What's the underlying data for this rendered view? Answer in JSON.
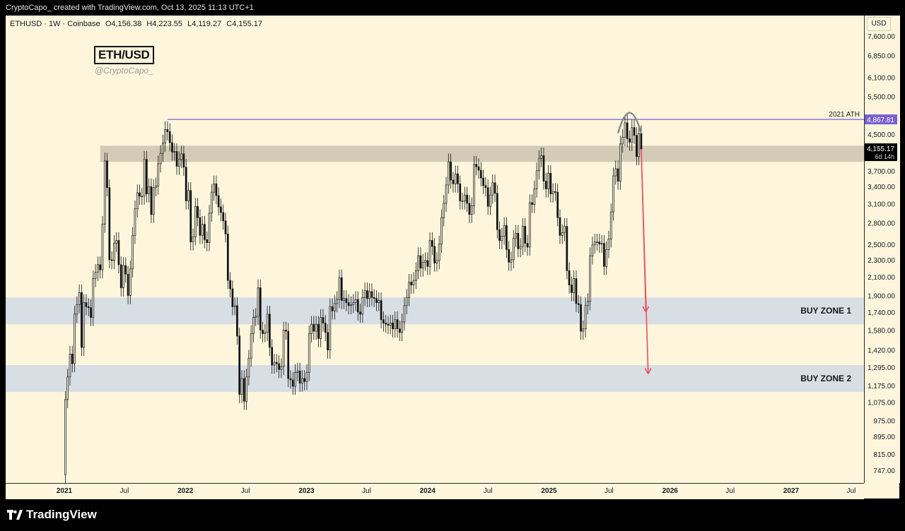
{
  "header": {
    "byline": "CryptoCapo_ created with TradingView.com, Oct 13, 2025 11:13 UTC+1"
  },
  "symbol": {
    "name": "ETHUSD · 1W · Coinbase",
    "open": "O4,156.38",
    "high": "H4,223.55",
    "low": "L4,119.27",
    "close": "C4,155.17"
  },
  "watermark": {
    "title": "ETH/USD",
    "handle": "@CryptoCapo_"
  },
  "footer": {
    "brand": "TradingView"
  },
  "colors": {
    "background": "#fdf6dc",
    "zone": "#d7dee4",
    "resistance_band": "#d3cbb8",
    "ath_line": "#7b5fce",
    "ath_label_bg": "#7b5fce",
    "arrow": "#ef4f5c",
    "candle": "#111111"
  },
  "chart_data": {
    "type": "candlestick",
    "currency": "USD",
    "price_scale": "log",
    "y_ticks": [
      7600,
      6850,
      6100,
      5500,
      4500,
      3700,
      3400,
      3100,
      2800,
      2500,
      2300,
      2100,
      1900,
      1740,
      1580,
      1420,
      1295,
      1175,
      1075,
      975,
      895,
      815,
      747
    ],
    "y_tick_labels": [
      "7,600.00",
      "6,850.00",
      "6,100.00",
      "5,500.00",
      "4,500.00",
      "3,700.00",
      "3,400.00",
      "3,100.00",
      "2,800.00",
      "2,500.00",
      "2,300.00",
      "2,100.00",
      "1,900.00",
      "1,740.00",
      "1,580.00",
      "1,420.00",
      "1,295.00",
      "1,175.00",
      "1,075.00",
      "975.00",
      "895.00",
      "815.00",
      "747.00"
    ],
    "x_ticks": [
      {
        "label": "2021",
        "date": "2021-01-01",
        "bold": true
      },
      {
        "label": "Jul",
        "date": "2021-07-01",
        "bold": false
      },
      {
        "label": "2022",
        "date": "2022-01-01",
        "bold": true
      },
      {
        "label": "Jul",
        "date": "2022-07-01",
        "bold": false
      },
      {
        "label": "2023",
        "date": "2023-01-01",
        "bold": true
      },
      {
        "label": "Jul",
        "date": "2023-07-01",
        "bold": false
      },
      {
        "label": "2024",
        "date": "2024-01-01",
        "bold": true
      },
      {
        "label": "Jul",
        "date": "2024-07-01",
        "bold": false
      },
      {
        "label": "2025",
        "date": "2025-01-01",
        "bold": true
      },
      {
        "label": "Jul",
        "date": "2025-07-01",
        "bold": false
      },
      {
        "label": "2026",
        "date": "2026-01-01",
        "bold": true
      },
      {
        "label": "Jul",
        "date": "2026-07-01",
        "bold": false
      },
      {
        "label": "2027",
        "date": "2027-01-01",
        "bold": true
      },
      {
        "label": "Jul",
        "date": "2027-07-01",
        "bold": false
      }
    ],
    "weekly_closes": [
      [
        "2020-12-28",
        730
      ],
      [
        "2021-01-04",
        1090
      ],
      [
        "2021-01-11",
        1230
      ],
      [
        "2021-01-18",
        1390
      ],
      [
        "2021-01-25",
        1320
      ],
      [
        "2021-02-01",
        1720
      ],
      [
        "2021-02-08",
        1810
      ],
      [
        "2021-02-15",
        1930
      ],
      [
        "2021-02-22",
        1440
      ],
      [
        "2021-03-01",
        1830
      ],
      [
        "2021-03-08",
        1790
      ],
      [
        "2021-03-15",
        1780
      ],
      [
        "2021-03-22",
        1690
      ],
      [
        "2021-03-29",
        2080
      ],
      [
        "2021-04-05",
        2150
      ],
      [
        "2021-04-12",
        2240
      ],
      [
        "2021-04-19",
        2180
      ],
      [
        "2021-04-26",
        2780
      ],
      [
        "2021-05-03",
        3900
      ],
      [
        "2021-05-10",
        3380
      ],
      [
        "2021-05-17",
        2300
      ],
      [
        "2021-05-24",
        2290
      ],
      [
        "2021-05-31",
        2510
      ],
      [
        "2021-06-07",
        2550
      ],
      [
        "2021-06-14",
        2240
      ],
      [
        "2021-06-21",
        1980
      ],
      [
        "2021-06-28",
        2230
      ],
      [
        "2021-07-05",
        2130
      ],
      [
        "2021-07-12",
        1900
      ],
      [
        "2021-07-19",
        2190
      ],
      [
        "2021-07-26",
        2620
      ],
      [
        "2021-08-02",
        3020
      ],
      [
        "2021-08-09",
        3290
      ],
      [
        "2021-08-16",
        3230
      ],
      [
        "2021-08-23",
        3230
      ],
      [
        "2021-08-30",
        3930
      ],
      [
        "2021-09-06",
        3270
      ],
      [
        "2021-09-13",
        3400
      ],
      [
        "2021-09-20",
        2930
      ],
      [
        "2021-09-27",
        3380
      ],
      [
        "2021-10-04",
        3410
      ],
      [
        "2021-10-11",
        3840
      ],
      [
        "2021-10-18",
        4060
      ],
      [
        "2021-10-25",
        4290
      ],
      [
        "2021-11-01",
        4610
      ],
      [
        "2021-11-08",
        4560
      ],
      [
        "2021-11-15",
        4300
      ],
      [
        "2021-11-22",
        4090
      ],
      [
        "2021-11-29",
        4100
      ],
      [
        "2021-12-06",
        3790
      ],
      [
        "2021-12-13",
        3930
      ],
      [
        "2021-12-20",
        4050
      ],
      [
        "2021-12-27",
        3770
      ],
      [
        "2022-01-03",
        3150
      ],
      [
        "2022-01-10",
        3330
      ],
      [
        "2022-01-17",
        2530
      ],
      [
        "2022-01-24",
        2600
      ],
      [
        "2022-01-31",
        3060
      ],
      [
        "2022-02-07",
        2880
      ],
      [
        "2022-02-14",
        2620
      ],
      [
        "2022-02-21",
        2780
      ],
      [
        "2022-02-28",
        2560
      ],
      [
        "2022-03-07",
        2520
      ],
      [
        "2022-03-14",
        2950
      ],
      [
        "2022-03-21",
        3300
      ],
      [
        "2022-03-28",
        3450
      ],
      [
        "2022-04-04",
        3240
      ],
      [
        "2022-04-11",
        3050
      ],
      [
        "2022-04-18",
        2960
      ],
      [
        "2022-04-25",
        2830
      ],
      [
        "2022-05-02",
        2640
      ],
      [
        "2022-05-09",
        2060
      ],
      [
        "2022-05-16",
        1970
      ],
      [
        "2022-05-23",
        1790
      ],
      [
        "2022-05-30",
        1800
      ],
      [
        "2022-06-06",
        1530
      ],
      [
        "2022-06-13",
        1120
      ],
      [
        "2022-06-20",
        1220
      ],
      [
        "2022-06-27",
        1080
      ],
      [
        "2022-07-04",
        1230
      ],
      [
        "2022-07-11",
        1360
      ],
      [
        "2022-07-18",
        1550
      ],
      [
        "2022-07-25",
        1690
      ],
      [
        "2022-08-01",
        1700
      ],
      [
        "2022-08-08",
        1980
      ],
      [
        "2022-08-15",
        1580
      ],
      [
        "2022-08-22",
        1550
      ],
      [
        "2022-08-29",
        1560
      ],
      [
        "2022-09-05",
        1720
      ],
      [
        "2022-09-12",
        1440
      ],
      [
        "2022-09-19",
        1310
      ],
      [
        "2022-09-26",
        1330
      ],
      [
        "2022-10-03",
        1320
      ],
      [
        "2022-10-10",
        1280
      ],
      [
        "2022-10-17",
        1300
      ],
      [
        "2022-10-24",
        1580
      ],
      [
        "2022-10-31",
        1570
      ],
      [
        "2022-11-07",
        1220
      ],
      [
        "2022-11-14",
        1210
      ],
      [
        "2022-11-21",
        1170
      ],
      [
        "2022-11-28",
        1260
      ],
      [
        "2022-12-05",
        1270
      ],
      [
        "2022-12-12",
        1190
      ],
      [
        "2022-12-19",
        1220
      ],
      [
        "2022-12-26",
        1200
      ],
      [
        "2023-01-02",
        1260
      ],
      [
        "2023-01-09",
        1550
      ],
      [
        "2023-01-16",
        1630
      ],
      [
        "2023-01-23",
        1570
      ],
      [
        "2023-01-30",
        1630
      ],
      [
        "2023-02-06",
        1510
      ],
      [
        "2023-02-13",
        1690
      ],
      [
        "2023-02-20",
        1640
      ],
      [
        "2023-02-27",
        1560
      ],
      [
        "2023-03-06",
        1420
      ],
      [
        "2023-03-13",
        1790
      ],
      [
        "2023-03-20",
        1750
      ],
      [
        "2023-03-27",
        1820
      ],
      [
        "2023-04-03",
        1860
      ],
      [
        "2023-04-10",
        2090
      ],
      [
        "2023-04-17",
        1850
      ],
      [
        "2023-04-24",
        1870
      ],
      [
        "2023-05-01",
        1830
      ],
      [
        "2023-05-08",
        1800
      ],
      [
        "2023-05-15",
        1810
      ],
      [
        "2023-05-22",
        1830
      ],
      [
        "2023-05-29",
        1860
      ],
      [
        "2023-06-05",
        1740
      ],
      [
        "2023-06-12",
        1720
      ],
      [
        "2023-06-19",
        1880
      ],
      [
        "2023-06-26",
        1950
      ],
      [
        "2023-07-03",
        1870
      ],
      [
        "2023-07-10",
        1940
      ],
      [
        "2023-07-17",
        1880
      ],
      [
        "2023-07-24",
        1870
      ],
      [
        "2023-07-31",
        1830
      ],
      [
        "2023-08-07",
        1850
      ],
      [
        "2023-08-14",
        1670
      ],
      [
        "2023-08-21",
        1640
      ],
      [
        "2023-08-28",
        1630
      ],
      [
        "2023-09-04",
        1620
      ],
      [
        "2023-09-11",
        1640
      ],
      [
        "2023-09-18",
        1590
      ],
      [
        "2023-09-25",
        1670
      ],
      [
        "2023-10-02",
        1590
      ],
      [
        "2023-10-09",
        1560
      ],
      [
        "2023-10-16",
        1650
      ],
      [
        "2023-10-23",
        1800
      ],
      [
        "2023-10-30",
        1880
      ],
      [
        "2023-11-06",
        2040
      ],
      [
        "2023-11-13",
        2010
      ],
      [
        "2023-11-20",
        2060
      ],
      [
        "2023-11-27",
        2170
      ],
      [
        "2023-12-04",
        2350
      ],
      [
        "2023-12-11",
        2200
      ],
      [
        "2023-12-18",
        2270
      ],
      [
        "2023-12-25",
        2290
      ],
      [
        "2024-01-01",
        2220
      ],
      [
        "2024-01-08",
        2550
      ],
      [
        "2024-01-15",
        2470
      ],
      [
        "2024-01-22",
        2260
      ],
      [
        "2024-01-29",
        2290
      ],
      [
        "2024-02-05",
        2500
      ],
      [
        "2024-02-12",
        2880
      ],
      [
        "2024-02-19",
        3110
      ],
      [
        "2024-02-26",
        3430
      ],
      [
        "2024-03-04",
        3880
      ],
      [
        "2024-03-11",
        3520
      ],
      [
        "2024-03-18",
        3450
      ],
      [
        "2024-03-25",
        3640
      ],
      [
        "2024-04-01",
        3450
      ],
      [
        "2024-04-08",
        3150
      ],
      [
        "2024-04-15",
        3150
      ],
      [
        "2024-04-22",
        3250
      ],
      [
        "2024-04-29",
        3110
      ],
      [
        "2024-05-06",
        2930
      ],
      [
        "2024-05-13",
        3070
      ],
      [
        "2024-05-20",
        3830
      ],
      [
        "2024-05-27",
        3780
      ],
      [
        "2024-06-03",
        3710
      ],
      [
        "2024-06-10",
        3560
      ],
      [
        "2024-06-17",
        3420
      ],
      [
        "2024-06-24",
        3380
      ],
      [
        "2024-07-01",
        3060
      ],
      [
        "2024-07-08",
        3250
      ],
      [
        "2024-07-15",
        3470
      ],
      [
        "2024-07-22",
        3280
      ],
      [
        "2024-07-29",
        2700
      ],
      [
        "2024-08-05",
        2550
      ],
      [
        "2024-08-12",
        2610
      ],
      [
        "2024-08-19",
        2760
      ],
      [
        "2024-08-26",
        2430
      ],
      [
        "2024-09-02",
        2270
      ],
      [
        "2024-09-09",
        2300
      ],
      [
        "2024-09-16",
        2580
      ],
      [
        "2024-09-23",
        2650
      ],
      [
        "2024-09-30",
        2440
      ],
      [
        "2024-10-07",
        2470
      ],
      [
        "2024-10-14",
        2750
      ],
      [
        "2024-10-21",
        2510
      ],
      [
        "2024-10-28",
        2460
      ],
      [
        "2024-11-04",
        3120
      ],
      [
        "2024-11-11",
        3090
      ],
      [
        "2024-11-18",
        3360
      ],
      [
        "2024-11-25",
        3700
      ],
      [
        "2024-12-02",
        3950
      ],
      [
        "2024-12-09",
        4010
      ],
      [
        "2024-12-16",
        3500
      ],
      [
        "2024-12-23",
        3360
      ],
      [
        "2024-12-30",
        3650
      ],
      [
        "2025-01-06",
        3270
      ],
      [
        "2025-01-13",
        3310
      ],
      [
        "2025-01-20",
        3300
      ],
      [
        "2025-01-27",
        2880
      ],
      [
        "2025-02-03",
        2620
      ],
      [
        "2025-02-10",
        2660
      ],
      [
        "2025-02-17",
        2750
      ],
      [
        "2025-02-24",
        2170
      ],
      [
        "2025-03-03",
        2010
      ],
      [
        "2025-03-10",
        1930
      ],
      [
        "2025-03-17",
        2080
      ],
      [
        "2025-03-24",
        1820
      ],
      [
        "2025-03-31",
        1810
      ],
      [
        "2025-04-07",
        1570
      ],
      [
        "2025-04-14",
        1590
      ],
      [
        "2025-04-21",
        1800
      ],
      [
        "2025-04-28",
        1840
      ],
      [
        "2025-05-05",
        2350
      ],
      [
        "2025-05-12",
        2490
      ],
      [
        "2025-05-19",
        2530
      ],
      [
        "2025-05-26",
        2530
      ],
      [
        "2025-06-02",
        2500
      ],
      [
        "2025-06-09",
        2510
      ],
      [
        "2025-06-16",
        2220
      ],
      [
        "2025-06-23",
        2430
      ],
      [
        "2025-06-30",
        2570
      ],
      [
        "2025-07-07",
        2970
      ],
      [
        "2025-07-14",
        3600
      ],
      [
        "2025-07-21",
        3740
      ],
      [
        "2025-07-28",
        3500
      ],
      [
        "2025-08-04",
        4270
      ],
      [
        "2025-08-11",
        4420
      ],
      [
        "2025-08-18",
        4780
      ],
      [
        "2025-08-25",
        4390
      ],
      [
        "2025-09-01",
        4310
      ],
      [
        "2025-09-08",
        4660
      ],
      [
        "2025-09-15",
        4470
      ],
      [
        "2025-09-22",
        3990
      ],
      [
        "2025-09-29",
        4510
      ],
      [
        "2025-10-06",
        4155
      ]
    ],
    "resistance_band": {
      "from": 3880,
      "to": 4230
    },
    "ath_line": {
      "price": 4867.81,
      "label": "4,867.81",
      "text": "2021 ATH",
      "start_date": "2021-11-08"
    },
    "current_price": {
      "value": 4155.17,
      "label": "4,155.17",
      "countdown": "6d 14h"
    },
    "zones": [
      {
        "label": "BUY ZONE 1",
        "from": 1630,
        "to": 1880
      },
      {
        "label": "BUY ZONE 2",
        "from": 1135,
        "to": 1310
      }
    ],
    "projection_arrows": [
      {
        "from": [
          "2025-10-06",
          4155
        ],
        "to": [
          "2025-10-20",
          1740
        ]
      },
      {
        "from": [
          "2025-10-06",
          4155
        ],
        "to": [
          "2025-10-27",
          1250
        ]
      }
    ],
    "top_arc": {
      "from": "2025-07-28",
      "to": "2025-10-06",
      "price": 4520
    }
  }
}
